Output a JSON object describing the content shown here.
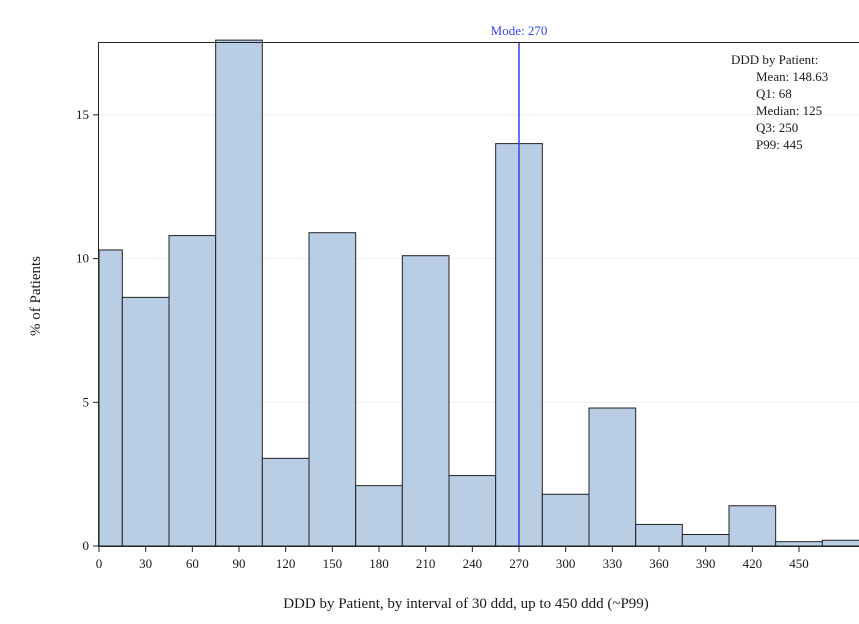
{
  "chart_data": {
    "type": "bar",
    "xlabel": "DDD by Patient, by interval of 30 ddd, up to 450 ddd (~P99)",
    "ylabel": "% of Patients",
    "xlim": [
      0,
      495
    ],
    "ylim": [
      0,
      17.5
    ],
    "x_ticks": [
      0,
      30,
      60,
      90,
      120,
      150,
      180,
      210,
      240,
      270,
      300,
      330,
      360,
      390,
      420,
      450
    ],
    "y_ticks": [
      0,
      5,
      10,
      15
    ],
    "grid": "horizontal",
    "bar_color": "#b9cde4",
    "bar_edge_color": "#222222",
    "bins": [
      {
        "start": 0,
        "end": 15,
        "value": 10.3
      },
      {
        "start": 15,
        "end": 45,
        "value": 8.65
      },
      {
        "start": 45,
        "end": 75,
        "value": 10.8
      },
      {
        "start": 75,
        "end": 105,
        "value": 17.6
      },
      {
        "start": 105,
        "end": 135,
        "value": 3.05
      },
      {
        "start": 135,
        "end": 165,
        "value": 10.9
      },
      {
        "start": 165,
        "end": 195,
        "value": 2.1
      },
      {
        "start": 195,
        "end": 225,
        "value": 10.1
      },
      {
        "start": 225,
        "end": 255,
        "value": 2.45
      },
      {
        "start": 255,
        "end": 285,
        "value": 14.0
      },
      {
        "start": 285,
        "end": 315,
        "value": 1.8
      },
      {
        "start": 315,
        "end": 345,
        "value": 4.8
      },
      {
        "start": 345,
        "end": 375,
        "value": 0.75
      },
      {
        "start": 375,
        "end": 405,
        "value": 0.4
      },
      {
        "start": 405,
        "end": 435,
        "value": 1.4
      },
      {
        "start": 435,
        "end": 465,
        "value": 0.15
      },
      {
        "start": 465,
        "end": 495,
        "value": 0.2
      }
    ],
    "mode_line": {
      "x": 270,
      "label": "Mode: 270",
      "color": "#3344ee"
    },
    "stats_box": {
      "position": "top-right",
      "title": "DDD by Patient:",
      "lines": [
        "Mean: 148.63",
        "Q1: 68",
        "Median: 125",
        "Q3: 250",
        "P99: 445"
      ]
    }
  }
}
